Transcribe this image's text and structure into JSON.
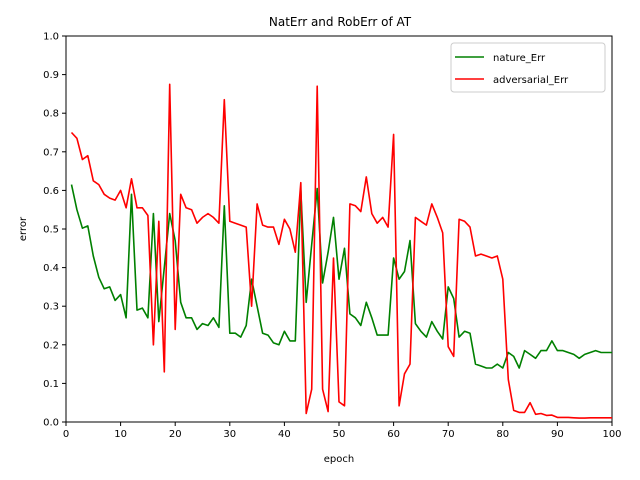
{
  "chart_data": {
    "type": "line",
    "title": "NatErr and RobErr of AT",
    "xlabel": "epoch",
    "ylabel": "error",
    "xlim": [
      0,
      100
    ],
    "ylim": [
      0,
      1.0
    ],
    "xticks": [
      0,
      10,
      20,
      30,
      40,
      50,
      60,
      70,
      80,
      90,
      100
    ],
    "yticks": [
      0.0,
      0.1,
      0.2,
      0.3,
      0.4,
      0.5,
      0.6,
      0.7,
      0.8,
      0.9,
      1.0
    ],
    "xtick_labels": [
      "0",
      "10",
      "20",
      "30",
      "40",
      "50",
      "60",
      "70",
      "80",
      "90",
      "100"
    ],
    "ytick_labels": [
      "0.0",
      "0.1",
      "0.2",
      "0.3",
      "0.4",
      "0.5",
      "0.6",
      "0.7",
      "0.8",
      "0.9",
      "1.0"
    ],
    "grid": false,
    "legend_position": "top-right",
    "x": [
      1,
      2,
      3,
      4,
      5,
      6,
      7,
      8,
      9,
      10,
      11,
      12,
      13,
      14,
      15,
      16,
      17,
      18,
      19,
      20,
      21,
      22,
      23,
      24,
      25,
      26,
      27,
      28,
      29,
      30,
      31,
      32,
      33,
      34,
      35,
      36,
      37,
      38,
      39,
      40,
      41,
      42,
      43,
      44,
      45,
      46,
      47,
      48,
      49,
      50,
      51,
      52,
      53,
      54,
      55,
      56,
      57,
      58,
      59,
      60,
      61,
      62,
      63,
      64,
      65,
      66,
      67,
      68,
      69,
      70,
      71,
      72,
      73,
      74,
      75,
      76,
      77,
      78,
      79,
      80,
      81,
      82,
      83,
      84,
      85,
      86,
      87,
      88,
      89,
      90,
      91,
      92,
      93,
      94,
      95,
      96,
      97,
      98,
      99,
      100
    ],
    "series": [
      {
        "name": "nature_Err",
        "color": "#008000",
        "values": [
          0.615,
          0.55,
          0.502,
          0.508,
          0.43,
          0.375,
          0.345,
          0.35,
          0.315,
          0.33,
          0.27,
          0.59,
          0.29,
          0.295,
          0.27,
          0.54,
          0.26,
          0.4,
          0.54,
          0.47,
          0.31,
          0.27,
          0.27,
          0.24,
          0.255,
          0.25,
          0.27,
          0.245,
          0.56,
          0.23,
          0.23,
          0.22,
          0.25,
          0.37,
          0.3,
          0.23,
          0.225,
          0.205,
          0.2,
          0.235,
          0.21,
          0.21,
          0.6,
          0.31,
          0.46,
          0.605,
          0.36,
          0.44,
          0.53,
          0.37,
          0.45,
          0.28,
          0.27,
          0.25,
          0.31,
          0.27,
          0.225,
          0.225,
          0.225,
          0.425,
          0.37,
          0.39,
          0.47,
          0.255,
          0.235,
          0.22,
          0.26,
          0.235,
          0.215,
          0.35,
          0.32,
          0.22,
          0.235,
          0.23,
          0.15,
          0.145,
          0.14,
          0.14,
          0.15,
          0.14,
          0.18,
          0.17,
          0.14,
          0.185,
          0.175,
          0.165,
          0.185,
          0.185,
          0.21,
          0.185,
          0.185,
          0.18,
          0.175,
          0.165,
          0.175,
          0.18,
          0.185,
          0.18,
          0.18,
          0.18
        ]
      },
      {
        "name": "adversarial_Err",
        "color": "#ff0000",
        "values": [
          0.75,
          0.735,
          0.68,
          0.69,
          0.625,
          0.615,
          0.59,
          0.58,
          0.575,
          0.6,
          0.555,
          0.63,
          0.555,
          0.555,
          0.535,
          0.2,
          0.52,
          0.13,
          0.875,
          0.24,
          0.59,
          0.555,
          0.55,
          0.515,
          0.53,
          0.54,
          0.53,
          0.515,
          0.835,
          0.52,
          0.515,
          0.51,
          0.505,
          0.3,
          0.565,
          0.51,
          0.505,
          0.505,
          0.46,
          0.525,
          0.5,
          0.44,
          0.62,
          0.022,
          0.085,
          0.87,
          0.085,
          0.027,
          0.425,
          0.052,
          0.042,
          0.565,
          0.56,
          0.545,
          0.635,
          0.54,
          0.515,
          0.53,
          0.505,
          0.745,
          0.042,
          0.125,
          0.15,
          0.53,
          0.52,
          0.51,
          0.565,
          0.53,
          0.49,
          0.195,
          0.17,
          0.525,
          0.52,
          0.505,
          0.43,
          0.435,
          0.43,
          0.425,
          0.43,
          0.37,
          0.11,
          0.03,
          0.025,
          0.025,
          0.05,
          0.02,
          0.022,
          0.017,
          0.018,
          0.012,
          0.012,
          0.012,
          0.011,
          0.01,
          0.01,
          0.011,
          0.011,
          0.011,
          0.011,
          0.011
        ]
      }
    ]
  }
}
